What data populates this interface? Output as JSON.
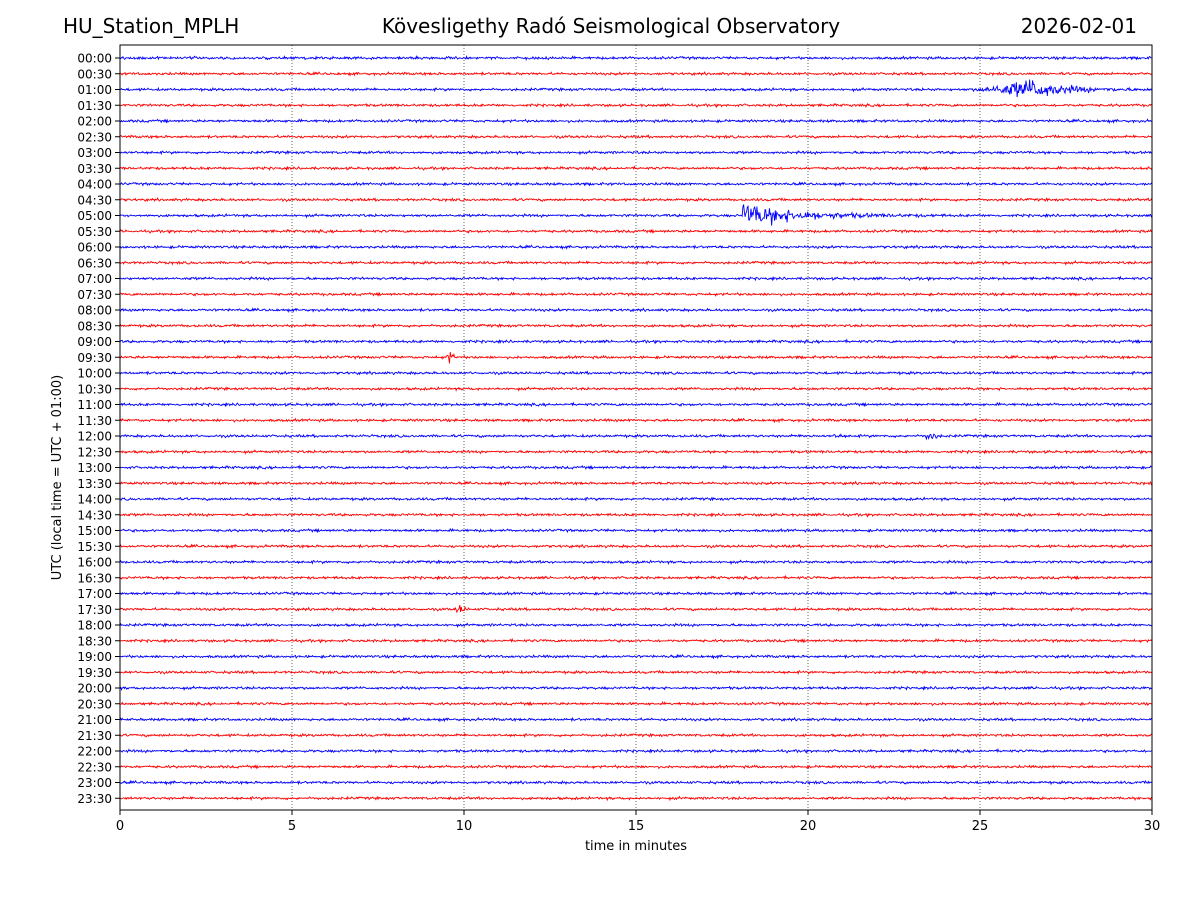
{
  "header": {
    "station": "HU_Station_MPLH",
    "title": "Kövesligethy Radó Seismological Observatory",
    "date": "2026-02-01"
  },
  "chart_data": {
    "type": "line",
    "title": "Kövesligethy Radó Seismological Observatory",
    "xlabel": "time in minutes",
    "ylabel": "UTC (local time = UTC + 01:00)",
    "xlim": [
      0,
      30
    ],
    "x_ticks": [
      0,
      5,
      10,
      15,
      20,
      25,
      30
    ],
    "x_tick_labels": [
      "0",
      "5",
      "10",
      "15",
      "20",
      "25",
      "30"
    ],
    "grid": "vertical dotted at major x ticks",
    "row_labels": [
      "00:00",
      "00:30",
      "01:00",
      "01:30",
      "02:00",
      "02:30",
      "03:00",
      "03:30",
      "04:00",
      "04:30",
      "05:00",
      "05:30",
      "06:00",
      "06:30",
      "07:00",
      "07:30",
      "08:00",
      "08:30",
      "09:00",
      "09:30",
      "10:00",
      "10:30",
      "11:00",
      "11:30",
      "12:00",
      "12:30",
      "13:00",
      "13:30",
      "14:00",
      "14:30",
      "15:00",
      "15:30",
      "16:00",
      "16:30",
      "17:00",
      "17:30",
      "18:00",
      "18:30",
      "19:00",
      "19:30",
      "20:00",
      "20:30",
      "21:00",
      "21:30",
      "22:00",
      "22:30",
      "23:00",
      "23:30"
    ],
    "colors": [
      "#0000ff",
      "#ff0000"
    ],
    "events": [
      {
        "row": "01:00",
        "start_min": 24.6,
        "peak_min": 26.5,
        "end_min": 30.0,
        "amplitude": 9.0
      },
      {
        "row": "05:00",
        "start_min": 18.1,
        "peak_min": 18.1,
        "end_min": 24.0,
        "amplitude": 11.0
      },
      {
        "row": "09:30",
        "start_min": 9.4,
        "peak_min": 9.6,
        "end_min": 9.9,
        "amplitude": 5.5
      },
      {
        "row": "12:00",
        "start_min": 19.8,
        "peak_min": 19.9,
        "end_min": 20.1,
        "amplitude": 3.0
      },
      {
        "row": "12:00",
        "start_min": 20.7,
        "peak_min": 20.9,
        "end_min": 21.1,
        "amplitude": 2.5
      },
      {
        "row": "12:00",
        "start_min": 23.3,
        "peak_min": 23.6,
        "end_min": 23.9,
        "amplitude": 6.0
      },
      {
        "row": "17:30",
        "start_min": 9.7,
        "peak_min": 9.9,
        "end_min": 10.2,
        "amplitude": 5.5
      }
    ]
  }
}
